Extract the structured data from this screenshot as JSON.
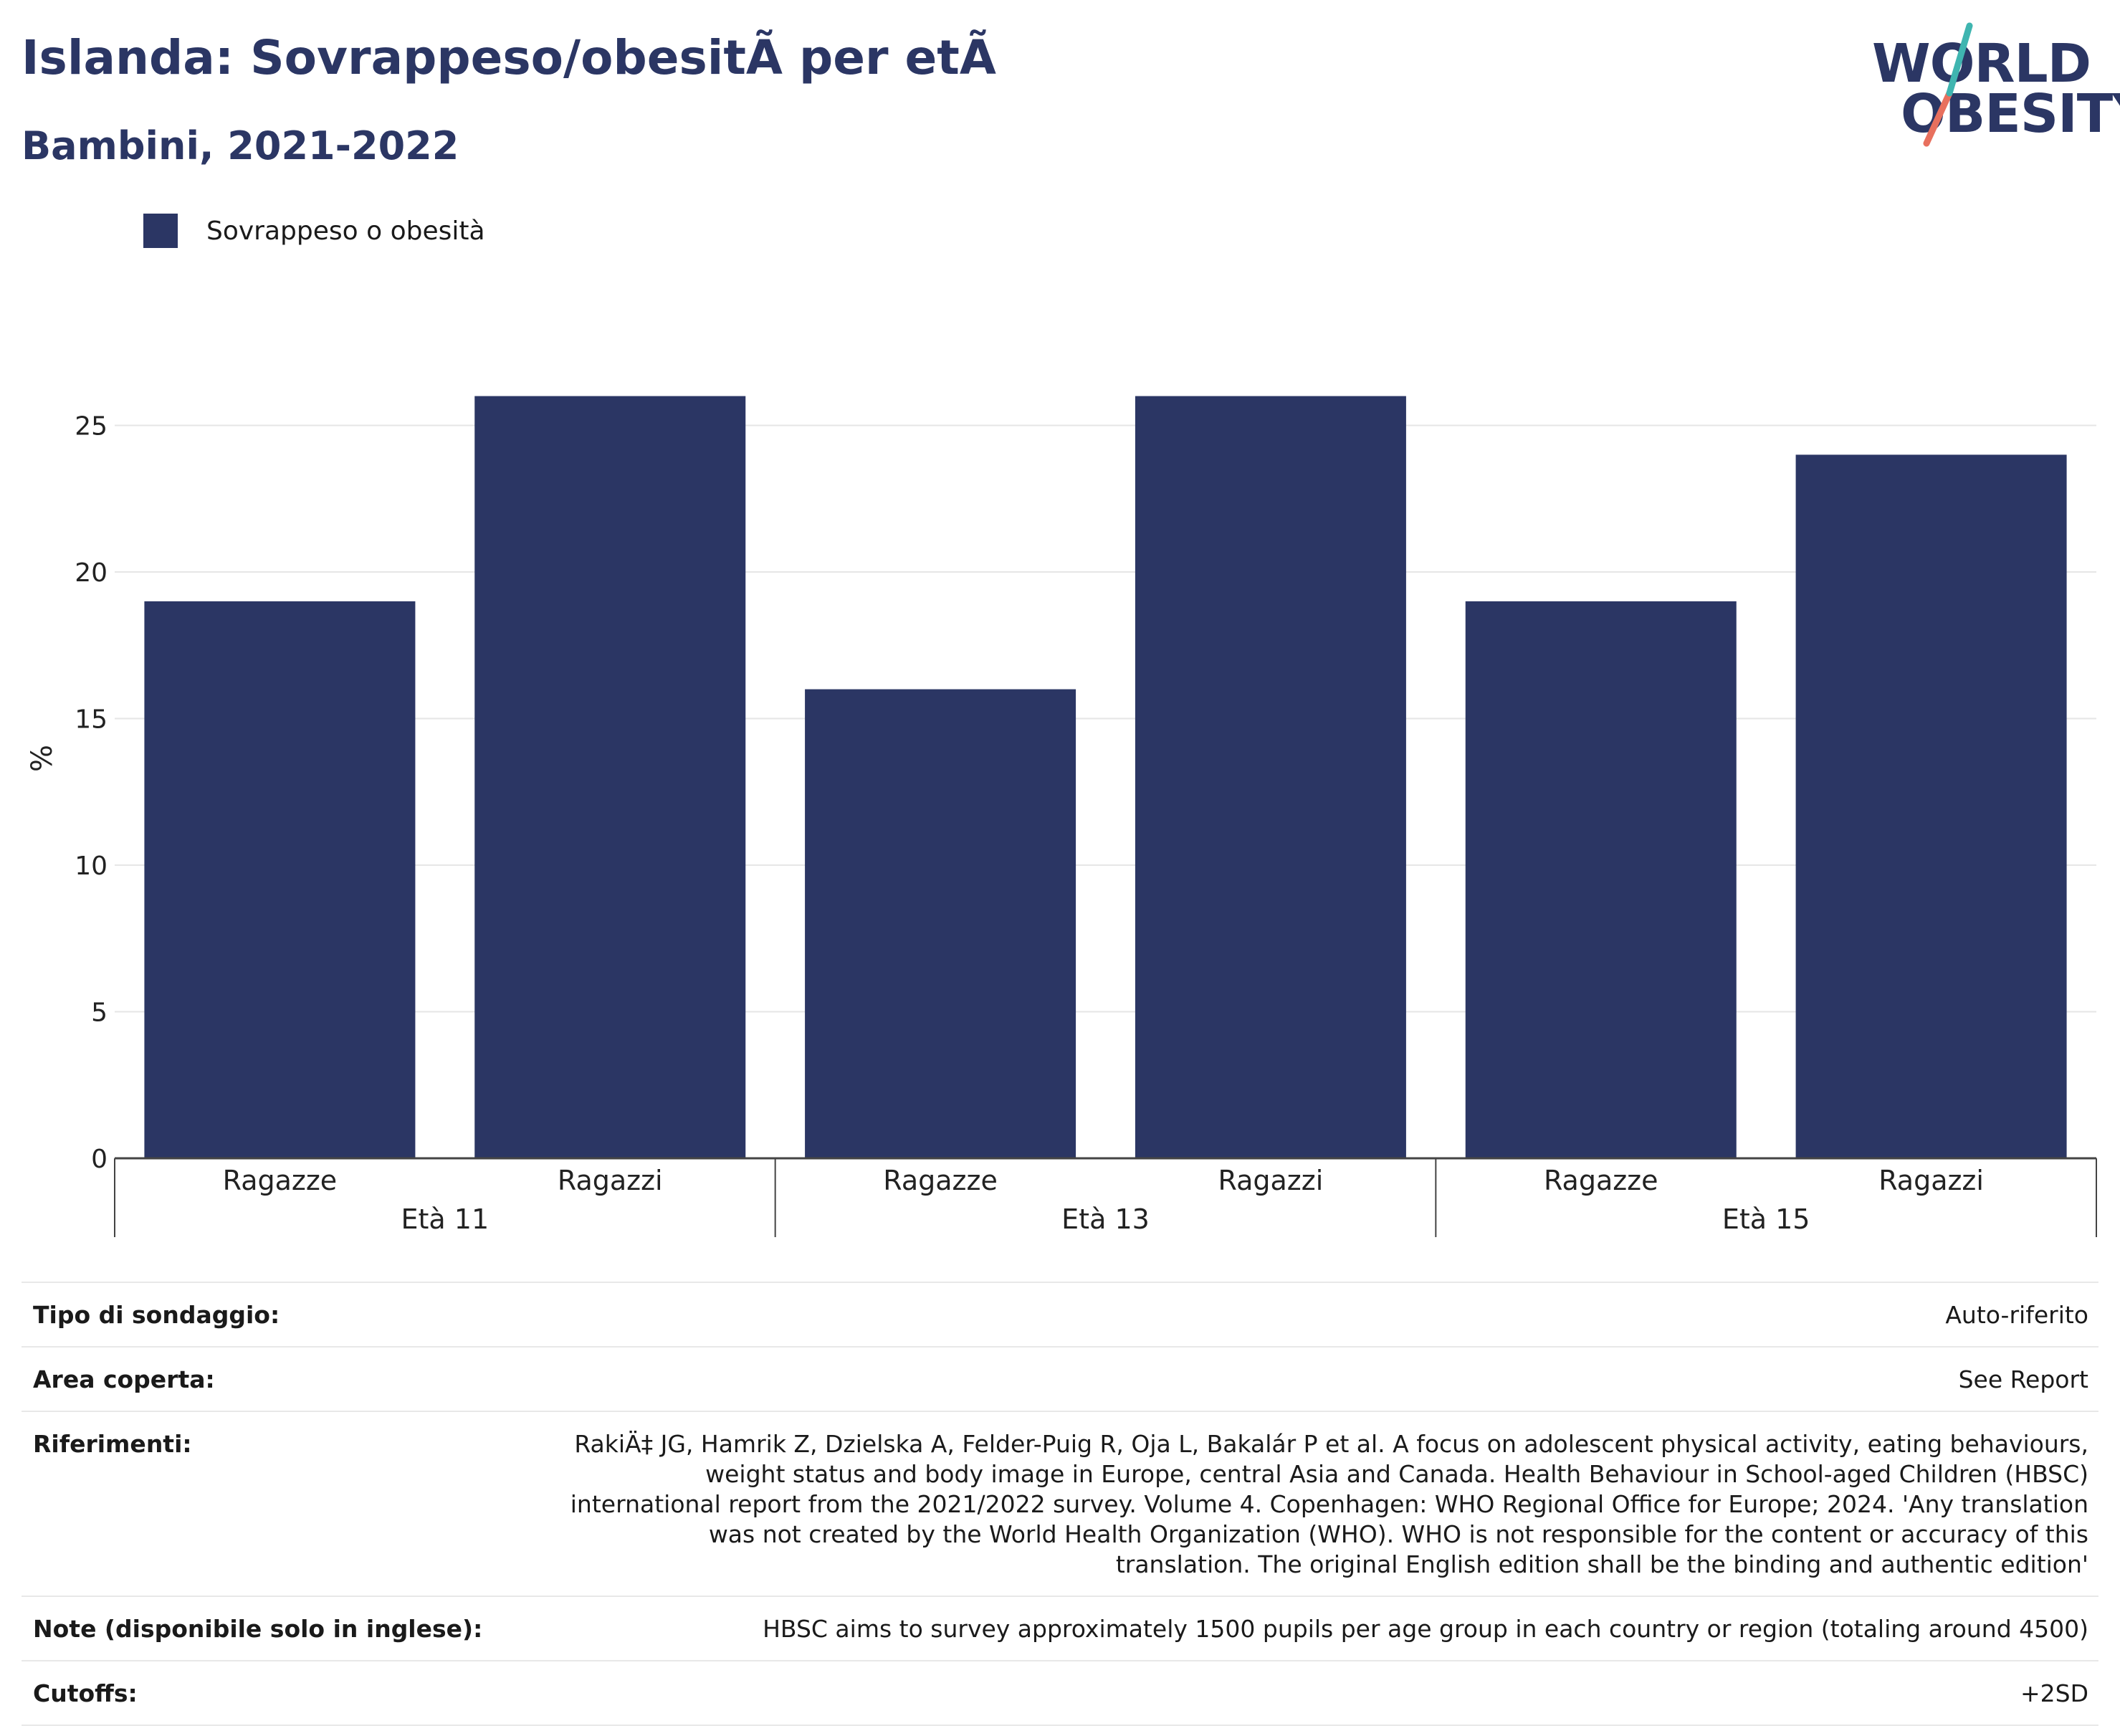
{
  "header": {
    "title": "Islanda: Sovrappeso/obesitÃ  per etÃ",
    "subtitle": "Bambini, 2021-2022"
  },
  "logo": {
    "line1": "WORLD",
    "line2": "OBESITY"
  },
  "colors": {
    "bar": "#2b3664",
    "title": "#2b3664",
    "logo_teal": "#3fb5b0",
    "logo_red": "#e8705e",
    "grid": "#e6e6e6"
  },
  "chart_data": {
    "type": "bar",
    "ylabel": "%",
    "ylim": [
      0,
      28
    ],
    "yticks": [
      0,
      5,
      10,
      15,
      20,
      25
    ],
    "grid": true,
    "legend": {
      "position": "top-left",
      "entries": [
        "Sovrappeso o obesità"
      ]
    },
    "groups": [
      {
        "label": "Età 11",
        "categories": [
          "Ragazze",
          "Ragazzi"
        ],
        "values": [
          19,
          26
        ]
      },
      {
        "label": "Età 13",
        "categories": [
          "Ragazze",
          "Ragazzi"
        ],
        "values": [
          16,
          26
        ]
      },
      {
        "label": "Età 15",
        "categories": [
          "Ragazze",
          "Ragazzi"
        ],
        "values": [
          19,
          24
        ]
      }
    ],
    "series": [
      {
        "name": "Sovrappeso o obesità",
        "values": [
          19,
          26,
          16,
          26,
          19,
          24
        ]
      }
    ]
  },
  "info": [
    {
      "key": "Tipo di sondaggio:",
      "value": "Auto-riferito"
    },
    {
      "key": "Area coperta:",
      "value": "See Report"
    },
    {
      "key": "Riferimenti:",
      "value": "RakiÄ‡ JG, Hamrik Z, Dzielska A, Felder-Puig R, Oja L, Bakalár P et al. A focus on adolescent physical activity, eating behaviours, weight status and body image in Europe, central Asia and Canada. Health Behaviour in School-aged Children (HBSC) international report from the 2021/2022 survey. Volume 4. Copenhagen: WHO Regional Office for Europe; 2024. 'Any translation was not created by the World Health Organization (WHO). WHO is not responsible for the content or accuracy of this translation. The original English edition shall be the binding and authentic edition'"
    },
    {
      "key": "Note (disponibile solo in inglese):",
      "value": "HBSC aims to survey approximately 1500 pupils per age group in each country or region (totaling around 4500)"
    },
    {
      "key": "Cutoffs:",
      "value": "+2SD"
    }
  ]
}
